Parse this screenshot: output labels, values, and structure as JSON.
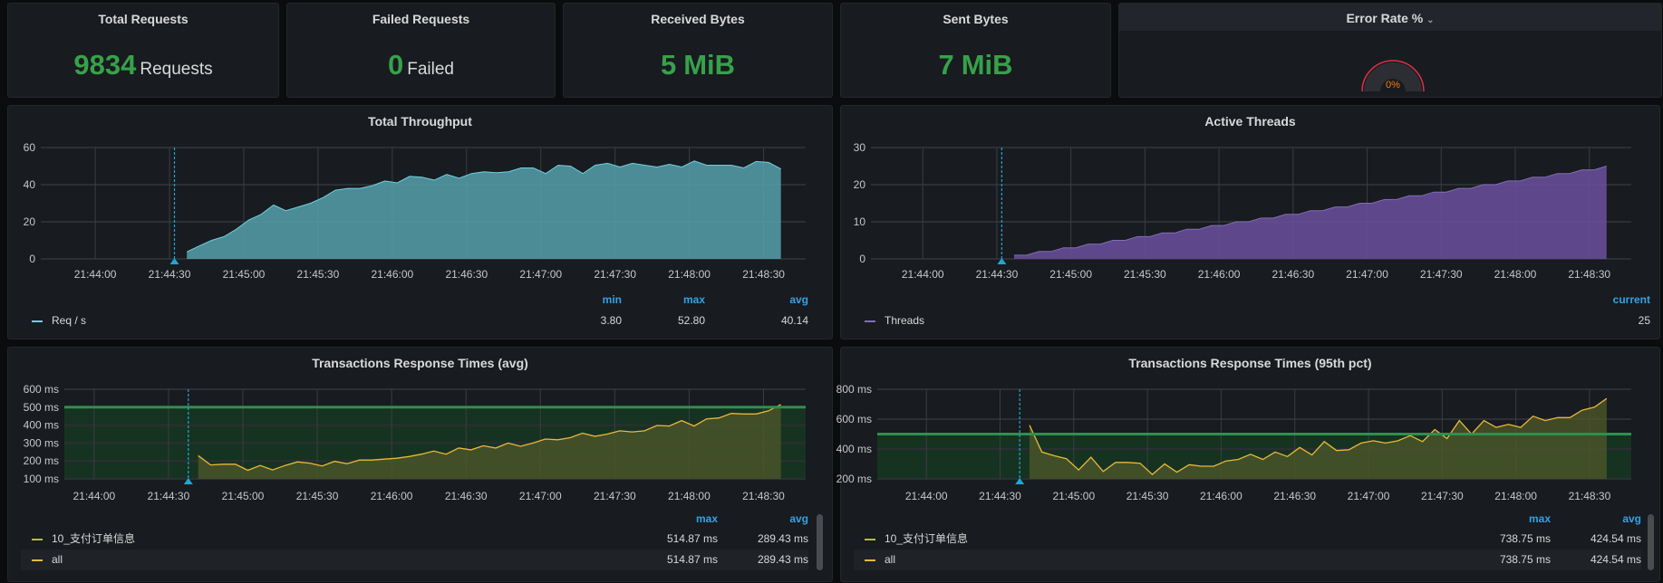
{
  "stats": [
    {
      "title": "Total Requests",
      "value": "9834",
      "unit": "Requests"
    },
    {
      "title": "Failed Requests",
      "value": "0",
      "unit": "Failed"
    },
    {
      "title": "Received Bytes",
      "value": "5",
      "unit": "MiB"
    },
    {
      "title": "Sent Bytes",
      "value": "7",
      "unit": "MiB"
    }
  ],
  "error_rate": {
    "title": "Error Rate %",
    "value": "0%",
    "fraction": 0,
    "menu_icon": "chevron-down-icon",
    "colors": {
      "arc": "#e02f44",
      "text": "#ff780a"
    }
  },
  "colors": {
    "value_green": "#37a14a",
    "legend_header": "#33a2e5",
    "throughput": "#6ed0e0",
    "threads": "#806eb7",
    "response": "#eab839",
    "threshold": "#2f8f4e"
  },
  "legends": {
    "throughput": {
      "headers": [
        "min",
        "max",
        "avg"
      ],
      "rows": [
        {
          "name": "Req / s",
          "values": [
            "3.80",
            "52.80",
            "40.14"
          ]
        }
      ]
    },
    "threads": {
      "headers": [
        "current"
      ],
      "rows": [
        {
          "name": "Threads",
          "values": [
            "25"
          ]
        }
      ]
    },
    "avg": {
      "headers": [
        "max",
        "avg"
      ],
      "rows": [
        {
          "name": "10_支付订单信息",
          "values": [
            "514.87 ms",
            "289.43 ms"
          ]
        },
        {
          "name": "all",
          "values": [
            "514.87 ms",
            "289.43 ms"
          ]
        }
      ]
    },
    "p95": {
      "headers": [
        "max",
        "avg"
      ],
      "rows": [
        {
          "name": "10_支付订单信息",
          "values": [
            "738.75 ms",
            "424.54 ms"
          ]
        },
        {
          "name": "all",
          "values": [
            "738.75 ms",
            "424.54 ms"
          ]
        }
      ]
    }
  },
  "chart_data": [
    {
      "type": "area",
      "title": "Total Throughput",
      "xlim": [
        "21:43:38",
        "21:48:47"
      ],
      "ylim": [
        0,
        60
      ],
      "yticks": [
        0,
        20,
        40,
        60
      ],
      "ytick_suffix": "",
      "xticks": [
        "21:44:00",
        "21:44:30",
        "21:45:00",
        "21:45:30",
        "21:46:00",
        "21:46:30",
        "21:47:00",
        "21:47:30",
        "21:48:00",
        "21:48:30"
      ],
      "annotation": "21:44:32",
      "grid": true,
      "series": [
        {
          "name": "Req / s",
          "x": [
            "21:44:37",
            "21:44:42",
            "21:44:47",
            "21:44:52",
            "21:44:57",
            "21:45:02",
            "21:45:07",
            "21:45:12",
            "21:45:17",
            "21:45:22",
            "21:45:27",
            "21:45:32",
            "21:45:37",
            "21:45:42",
            "21:45:47",
            "21:45:52",
            "21:45:57",
            "21:46:02",
            "21:46:07",
            "21:46:12",
            "21:46:17",
            "21:46:22",
            "21:46:27",
            "21:46:32",
            "21:46:37",
            "21:46:42",
            "21:46:47",
            "21:46:52",
            "21:46:57",
            "21:47:02",
            "21:47:07",
            "21:47:12",
            "21:47:17",
            "21:47:22",
            "21:47:27",
            "21:47:32",
            "21:47:37",
            "21:47:42",
            "21:47:47",
            "21:47:52",
            "21:47:57",
            "21:48:02",
            "21:48:07",
            "21:48:12",
            "21:48:17",
            "21:48:22",
            "21:48:27",
            "21:48:32",
            "21:48:37"
          ],
          "values": [
            3.8,
            7,
            10,
            12,
            16,
            21,
            24,
            29,
            26,
            28,
            30,
            33,
            37,
            38,
            38,
            39.5,
            42,
            41,
            44.5,
            44,
            42.5,
            45.5,
            43.5,
            46,
            47,
            46.5,
            47,
            49,
            49,
            46,
            50.5,
            50,
            46,
            50.5,
            51.5,
            49.5,
            51.5,
            50.5,
            49.5,
            51,
            49.5,
            52.8,
            50.5,
            50.5,
            50.5,
            49,
            52.5,
            52,
            48.5
          ]
        }
      ]
    },
    {
      "type": "area",
      "title": "Active Threads",
      "xlim": [
        "21:43:39",
        "21:48:47"
      ],
      "ylim": [
        0,
        30
      ],
      "yticks": [
        0,
        10,
        20,
        30
      ],
      "ytick_suffix": "",
      "xticks": [
        "21:44:00",
        "21:44:30",
        "21:45:00",
        "21:45:30",
        "21:46:00",
        "21:46:30",
        "21:47:00",
        "21:47:30",
        "21:48:00",
        "21:48:30"
      ],
      "annotation": "21:44:32",
      "grid": true,
      "series": [
        {
          "name": "Threads",
          "x": [
            "21:44:37",
            "21:44:42",
            "21:44:47",
            "21:44:52",
            "21:44:57",
            "21:45:02",
            "21:45:07",
            "21:45:12",
            "21:45:17",
            "21:45:22",
            "21:45:27",
            "21:45:32",
            "21:45:37",
            "21:45:42",
            "21:45:47",
            "21:45:52",
            "21:45:57",
            "21:46:02",
            "21:46:07",
            "21:46:12",
            "21:46:17",
            "21:46:22",
            "21:46:27",
            "21:46:32",
            "21:46:37",
            "21:46:42",
            "21:46:47",
            "21:46:52",
            "21:46:57",
            "21:47:02",
            "21:47:07",
            "21:47:12",
            "21:47:17",
            "21:47:22",
            "21:47:27",
            "21:47:32",
            "21:47:37",
            "21:47:42",
            "21:47:47",
            "21:47:52",
            "21:47:57",
            "21:48:02",
            "21:48:07",
            "21:48:12",
            "21:48:17",
            "21:48:22",
            "21:48:27",
            "21:48:32",
            "21:48:37"
          ],
          "values": [
            1,
            1,
            2,
            2,
            3,
            3,
            4,
            4,
            5,
            5,
            6,
            6,
            7,
            7,
            8,
            8,
            9,
            9,
            10,
            10,
            11,
            11,
            12,
            12,
            13,
            13,
            14,
            14,
            15,
            15,
            16,
            16,
            17,
            17,
            18,
            18,
            19,
            19,
            20,
            20,
            21,
            21,
            22,
            22,
            23,
            23,
            24,
            24,
            25
          ]
        }
      ]
    },
    {
      "type": "area",
      "title": "Transactions Response Times (avg)",
      "xlim": [
        "21:43:48",
        "21:48:47"
      ],
      "ylim": [
        100,
        600
      ],
      "yticks": [
        100,
        200,
        300,
        400,
        500,
        600
      ],
      "ytick_suffix": " ms",
      "xticks": [
        "21:44:00",
        "21:44:30",
        "21:45:00",
        "21:45:30",
        "21:46:00",
        "21:46:30",
        "21:47:00",
        "21:47:30",
        "21:48:00",
        "21:48:30"
      ],
      "annotation": "21:44:38",
      "threshold": 500,
      "grid": true,
      "series": [
        {
          "name": "10_支付订单信息",
          "x": [
            "21:44:42",
            "21:44:47",
            "21:44:52",
            "21:44:57",
            "21:45:02",
            "21:45:07",
            "21:45:12",
            "21:45:17",
            "21:45:22",
            "21:45:27",
            "21:45:32",
            "21:45:37",
            "21:45:42",
            "21:45:47",
            "21:45:52",
            "21:45:57",
            "21:46:02",
            "21:46:07",
            "21:46:12",
            "21:46:17",
            "21:46:22",
            "21:46:27",
            "21:46:32",
            "21:46:37",
            "21:46:42",
            "21:46:47",
            "21:46:52",
            "21:46:57",
            "21:47:02",
            "21:47:07",
            "21:47:12",
            "21:47:17",
            "21:47:22",
            "21:47:27",
            "21:47:32",
            "21:47:37",
            "21:47:42",
            "21:47:47",
            "21:47:52",
            "21:47:57",
            "21:48:02",
            "21:48:07",
            "21:48:12",
            "21:48:17",
            "21:48:22",
            "21:48:27",
            "21:48:32",
            "21:48:37"
          ],
          "values": [
            230,
            178,
            182,
            182,
            148,
            175,
            150,
            175,
            195,
            188,
            172,
            198,
            185,
            205,
            205,
            210,
            215,
            225,
            238,
            255,
            238,
            272,
            262,
            285,
            272,
            300,
            282,
            300,
            322,
            318,
            330,
            355,
            338,
            350,
            368,
            362,
            368,
            398,
            395,
            425,
            395,
            435,
            440,
            465,
            462,
            462,
            480,
            515
          ]
        }
      ]
    },
    {
      "type": "area",
      "title": "Transactions Response Times (95th pct)",
      "xlim": [
        "21:43:40",
        "21:48:47"
      ],
      "ylim": [
        200,
        800
      ],
      "yticks": [
        200,
        400,
        600,
        800
      ],
      "ytick_suffix": " ms",
      "xticks": [
        "21:44:00",
        "21:44:30",
        "21:45:00",
        "21:45:30",
        "21:46:00",
        "21:46:30",
        "21:47:00",
        "21:47:30",
        "21:48:00",
        "21:48:30"
      ],
      "annotation": "21:44:38",
      "threshold": 500,
      "grid": true,
      "series": [
        {
          "name": "10_支付订单信息",
          "x": [
            "21:44:42",
            "21:44:47",
            "21:44:52",
            "21:44:57",
            "21:45:02",
            "21:45:07",
            "21:45:12",
            "21:45:17",
            "21:45:22",
            "21:45:27",
            "21:45:32",
            "21:45:37",
            "21:45:42",
            "21:45:47",
            "21:45:52",
            "21:45:57",
            "21:46:02",
            "21:46:07",
            "21:46:12",
            "21:46:17",
            "21:46:22",
            "21:46:27",
            "21:46:32",
            "21:46:37",
            "21:46:42",
            "21:46:47",
            "21:46:52",
            "21:46:57",
            "21:47:02",
            "21:47:07",
            "21:47:12",
            "21:47:17",
            "21:47:22",
            "21:47:27",
            "21:47:32",
            "21:47:37",
            "21:47:42",
            "21:47:47",
            "21:47:52",
            "21:47:57",
            "21:48:02",
            "21:48:07",
            "21:48:12",
            "21:48:17",
            "21:48:22",
            "21:48:27",
            "21:48:32",
            "21:48:37"
          ],
          "values": [
            560,
            380,
            355,
            335,
            260,
            345,
            250,
            310,
            310,
            305,
            230,
            300,
            245,
            295,
            285,
            285,
            320,
            330,
            365,
            330,
            380,
            350,
            410,
            360,
            450,
            390,
            395,
            440,
            455,
            440,
            455,
            490,
            450,
            530,
            470,
            590,
            500,
            590,
            545,
            565,
            545,
            620,
            590,
            610,
            610,
            660,
            680,
            738
          ]
        }
      ]
    }
  ]
}
